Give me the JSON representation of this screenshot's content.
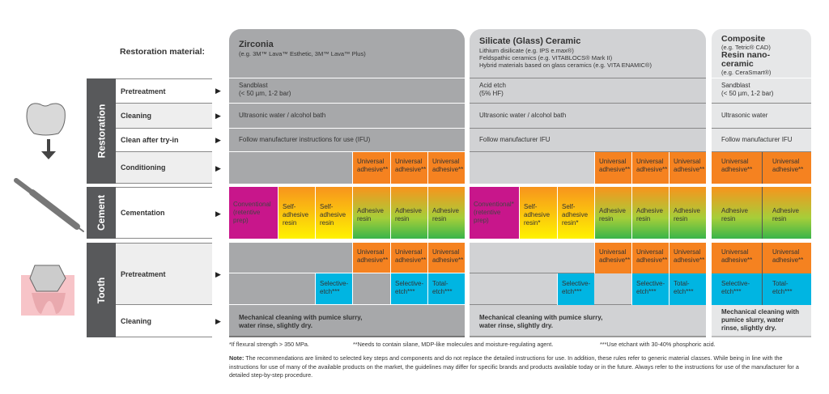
{
  "title": "Restoration material:",
  "sections": {
    "restoration": "Restoration",
    "cement": "Cement",
    "tooth": "Tooth"
  },
  "steps": [
    "Pretreatment",
    "Cleaning",
    "Clean after try-in",
    "Conditioning",
    "Cementation",
    "Pretreatment",
    "Cleaning"
  ],
  "arrow": "▶",
  "zirconia": {
    "name": "Zirconia",
    "examples": "(e.g. 3M™ Lava™ Esthetic, 3M™ Lava™ Plus)",
    "pre1": "Sandblast",
    "pre2": "(< 50 µm, 1-2 bar)",
    "clean": "Ultrasonic water / alcohol bath",
    "tryin": "Follow manufacturer instructions for use (IFU)",
    "tooth_clean1": "Mechanical cleaning with pumice slurry,",
    "tooth_clean2": "water rinse, slightly dry."
  },
  "silicate": {
    "name": "Silicate (Glass) Ceramic",
    "ex1": "Lithium disilicate (e.g. IPS e.max®)",
    "ex2": "Feldspathic ceramics (e.g. VITABLOCS® Mark II)",
    "ex3": "Hybrid materials based on glass ceramics (e.g. VITA ENAMIC®)",
    "pre1": "Acid etch",
    "pre2": "(5% HF)",
    "clean": "Ultrasonic water / alcohol bath",
    "tryin": "Follow manufacturer IFU",
    "tooth_clean1": "Mechanical cleaning with pumice slurry,",
    "tooth_clean2": "water rinse, slightly dry."
  },
  "composite": {
    "name": "Composite",
    "ex1": "(e.g. Tetric® CAD)",
    "name2": "Resin nano-ceramic",
    "ex2": "(e.g. CeraSmart®)",
    "pre1": "Sandblast",
    "pre2": "(< 50 µm, 1-2 bar)",
    "clean": "Ultrasonic water",
    "tryin": "Follow manufacturer IFU",
    "tooth_clean": "Mechanical cleaning with pumice slurry, water rinse, slightly dry."
  },
  "cells": {
    "ua": "Universal adhesive**",
    "conv": "Conventional (retentive prep)",
    "conv_s": "Conventional* (retentive prep)",
    "self": "Self-adhesive resin",
    "self_s": "Self-adhesive resin*",
    "adh": "Adhesive resin",
    "sel": "Selective-etch***",
    "tot": "Total-etch***"
  },
  "footnotes": [
    "*If flexural strength > 350 MPa.",
    "**Needs to contain silane, MDP-like molecules and moisture-regulating agent.",
    "***Use etchant with 30-40% phosphoric acid."
  ],
  "note_label": "Note:",
  "note": " The recommendations are limited to selected key steps and components and do not replace the detailed instructions for use. In addition, these rules refer to generic material classes. While being in line with the instructions for use of many of the available products on the market, the guidelines may differ for specific brands and products available today or in the future. Always refer to the instructions for use of the manufacturer for a detailed step-by-step procedure.",
  "colors": {
    "orange": "#f58220",
    "cyan": "#00b5e2",
    "magenta": "#c8168b",
    "zirconia": "#a7a8aa",
    "silicate": "#d1d2d4",
    "composite": "#e6e7e8"
  }
}
